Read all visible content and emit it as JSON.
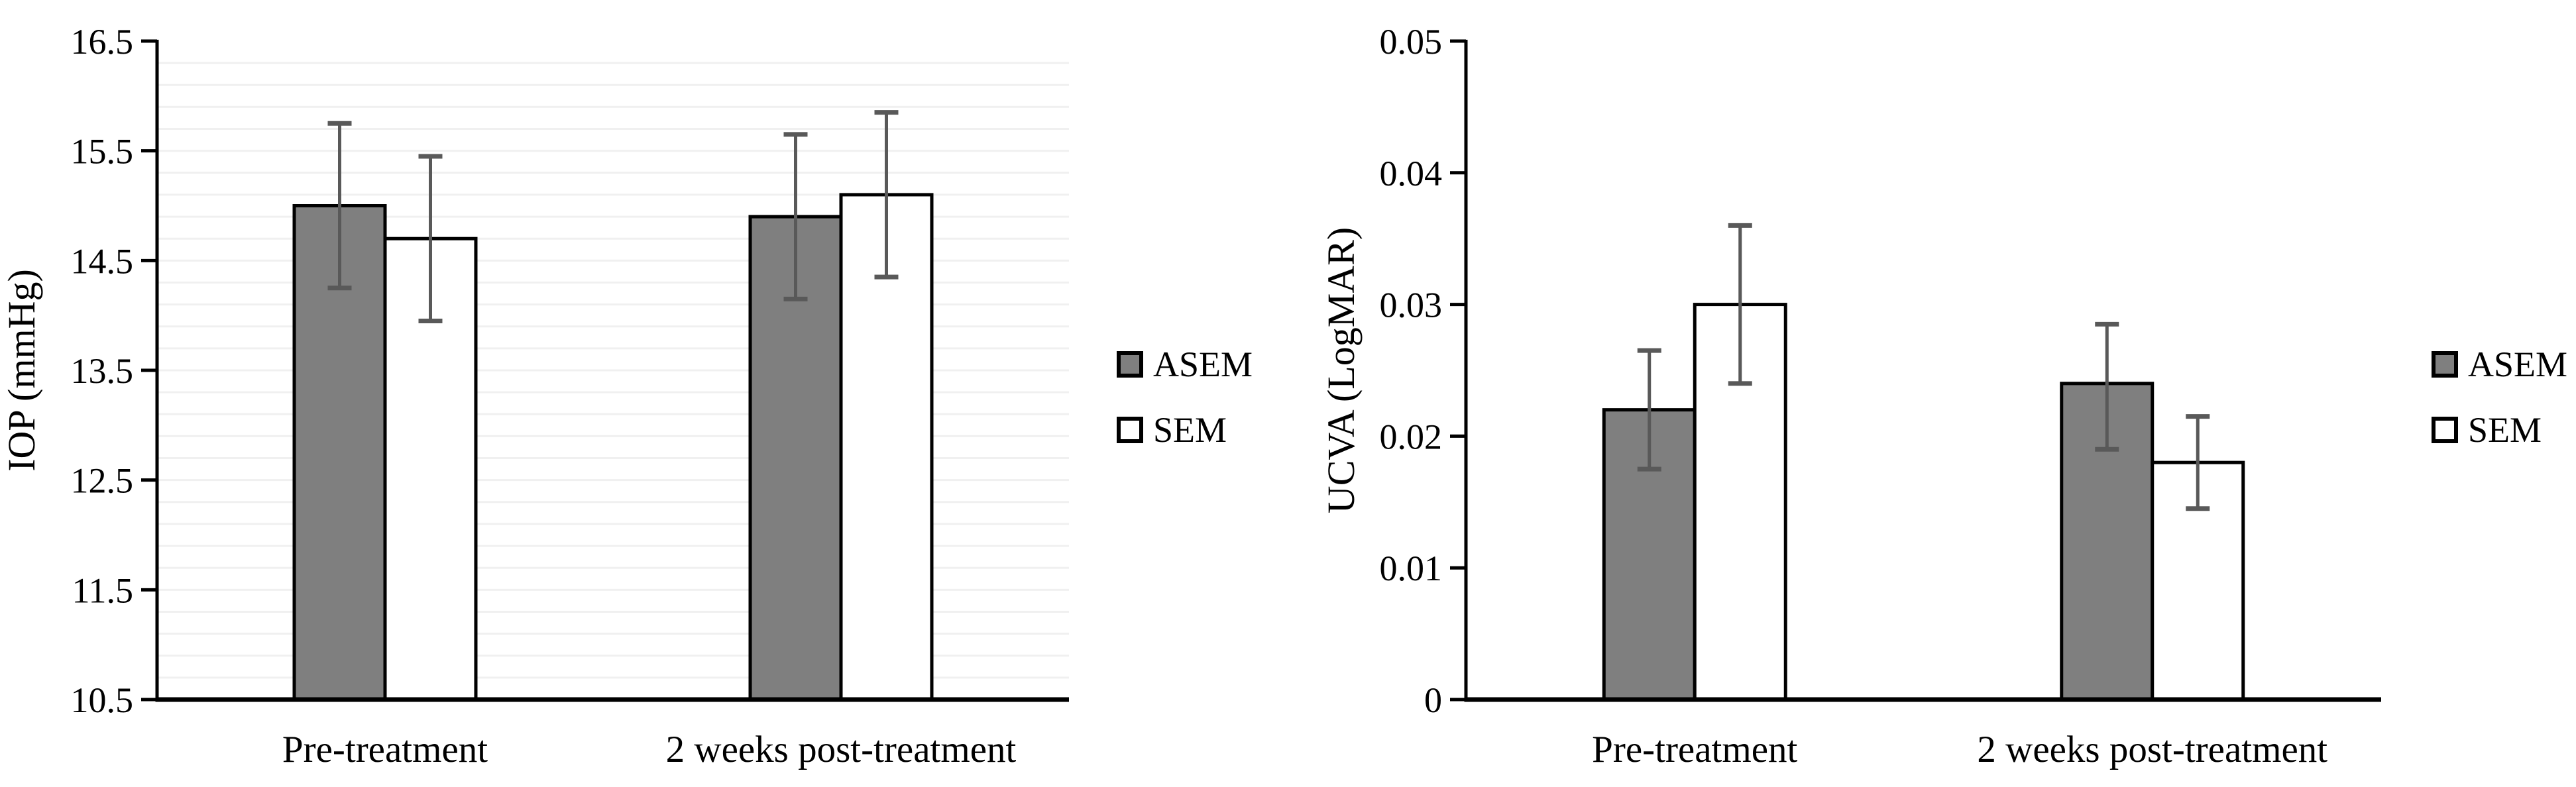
{
  "figure": {
    "background": "#ffffff",
    "axis_color": "#000000",
    "bar_outline": "#000000",
    "error_bar_color": "#595959",
    "gridline_color": "#f0f0f0",
    "text_color": "#000000",
    "asem_fill": "#7f7f7f",
    "sem_fill": "#ffffff"
  },
  "chart_data": [
    {
      "type": "bar",
      "name": "iop-chart",
      "title": "",
      "ylabel": "IOP (mmHg)",
      "xlabel": "",
      "categories": [
        "Pre-treatment",
        "2 weeks post-treatment"
      ],
      "ylim": [
        10.5,
        16.5
      ],
      "ytick_values": [
        16.5,
        15.5,
        14.5,
        13.5,
        12.5,
        11.5,
        10.5
      ],
      "ytick_labels": [
        "16.5",
        "15.5",
        "14.5",
        "13.5",
        "12.5",
        "11.5",
        "10.5"
      ],
      "grid": true,
      "gridline_step": 0.2,
      "legend_position": "right",
      "legend_entries": [
        "ASEM",
        "SEM"
      ],
      "series": [
        {
          "name": "ASEM",
          "fill_key": "asem_fill",
          "values": [
            15.0,
            14.9
          ],
          "error_low": [
            14.25,
            14.15
          ],
          "error_high": [
            15.75,
            15.65
          ]
        },
        {
          "name": "SEM",
          "fill_key": "sem_fill",
          "values": [
            14.7,
            15.1
          ],
          "error_low": [
            13.95,
            14.35
          ],
          "error_high": [
            15.45,
            15.85
          ]
        }
      ]
    },
    {
      "type": "bar",
      "name": "ucva-chart",
      "title": "",
      "ylabel": "UCVA (LogMAR)",
      "xlabel": "",
      "categories": [
        "Pre-treatment",
        "2 weeks post-treatment"
      ],
      "ylim": [
        0,
        0.05
      ],
      "ytick_values": [
        0.05,
        0.04,
        0.03,
        0.02,
        0.01,
        0
      ],
      "ytick_labels": [
        "0.05",
        "0.04",
        "0.03",
        "0.02",
        "0.01",
        "0"
      ],
      "grid": false,
      "gridline_step": 0,
      "legend_position": "right",
      "legend_entries": [
        "ASEM",
        "SEM"
      ],
      "series": [
        {
          "name": "ASEM",
          "fill_key": "asem_fill",
          "values": [
            0.022,
            0.024
          ],
          "error_low": [
            0.0175,
            0.019
          ],
          "error_high": [
            0.0265,
            0.0285
          ]
        },
        {
          "name": "SEM",
          "fill_key": "sem_fill",
          "values": [
            0.03,
            0.018
          ],
          "error_low": [
            0.024,
            0.0145
          ],
          "error_high": [
            0.036,
            0.0215
          ]
        }
      ]
    }
  ]
}
